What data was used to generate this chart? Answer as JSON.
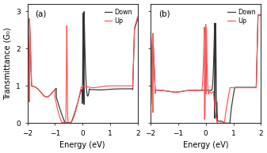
{
  "xlim": [
    -2,
    2
  ],
  "ylim": [
    0,
    3.2
  ],
  "yticks": [
    0,
    1,
    2,
    3
  ],
  "xticks": [
    -2,
    -1,
    0,
    1,
    2
  ],
  "xlabel": "Energy (eV)",
  "ylabel": "Transmittance (G₀)",
  "color_up": "#FF5555",
  "color_down": "#333333",
  "legend_up": "Up",
  "legend_down": "Down",
  "label_a": "(a)",
  "label_b": "(b)",
  "background": "#ffffff",
  "linewidth": 0.85
}
